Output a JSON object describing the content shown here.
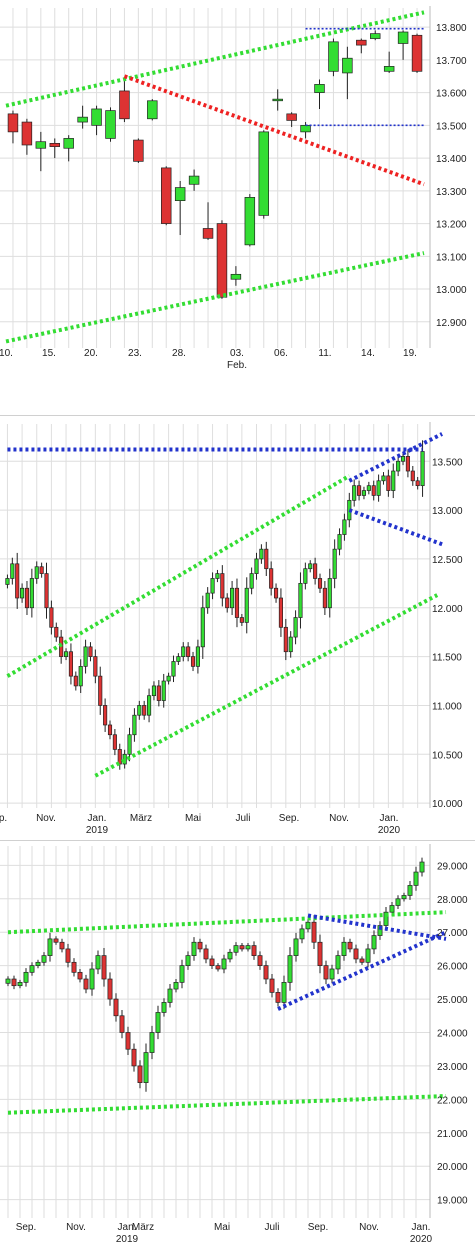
{
  "chart_data": [
    {
      "type": "candlestick",
      "title": "",
      "xlabel": "",
      "ylabel": "",
      "ylim": [
        12.82,
        13.84
      ],
      "yticks": [
        "13.800",
        "13.700",
        "13.600",
        "13.500",
        "13.400",
        "13.300",
        "13.200",
        "13.100",
        "13.000",
        "12.900"
      ],
      "ytick_values": [
        13800,
        13700,
        13600,
        13500,
        13400,
        13300,
        13200,
        13100,
        13000,
        12900
      ],
      "xticks": [
        "10.",
        "15.",
        "20.",
        "23.",
        "28.",
        "03.",
        "06.",
        "11.",
        "14.",
        "19."
      ],
      "xtick_sub": [
        "Feb."
      ],
      "grid": true,
      "candles": [
        {
          "x": 0,
          "open": 13535,
          "close": 13480,
          "high": 13545,
          "low": 13445
        },
        {
          "x": 1,
          "open": 13510,
          "close": 13440,
          "high": 13520,
          "low": 13410
        },
        {
          "x": 2,
          "open": 13430,
          "close": 13450,
          "high": 13480,
          "low": 13360
        },
        {
          "x": 3,
          "open": 13445,
          "close": 13435,
          "high": 13460,
          "low": 13400
        },
        {
          "x": 4,
          "open": 13430,
          "close": 13460,
          "high": 13470,
          "low": 13390
        },
        {
          "x": 5,
          "open": 13510,
          "close": 13525,
          "high": 13560,
          "low": 13490
        },
        {
          "x": 6,
          "open": 13500,
          "close": 13550,
          "high": 13560,
          "low": 13470
        },
        {
          "x": 7,
          "open": 13460,
          "close": 13545,
          "high": 13555,
          "low": 13450
        },
        {
          "x": 8,
          "open": 13605,
          "close": 13520,
          "high": 13640,
          "low": 13510
        },
        {
          "x": 9,
          "open": 13455,
          "close": 13390,
          "high": 13460,
          "low": 13385
        },
        {
          "x": 10,
          "open": 13520,
          "close": 13575,
          "high": 13580,
          "low": 13515
        },
        {
          "x": 11,
          "open": 13370,
          "close": 13200,
          "high": 13375,
          "low": 13195
        },
        {
          "x": 12,
          "open": 13270,
          "close": 13310,
          "high": 13330,
          "low": 13165
        },
        {
          "x": 13,
          "open": 13320,
          "close": 13345,
          "high": 13365,
          "low": 13300
        },
        {
          "x": 14,
          "open": 13185,
          "close": 13155,
          "high": 13265,
          "low": 13150
        },
        {
          "x": 15,
          "open": 13200,
          "close": 12975,
          "high": 13210,
          "low": 12970
        },
        {
          "x": 16,
          "open": 13030,
          "close": 13045,
          "high": 13070,
          "low": 13010
        },
        {
          "x": 17,
          "open": 13135,
          "close": 13280,
          "high": 13290,
          "low": 13130
        },
        {
          "x": 18,
          "open": 13225,
          "close": 13480,
          "high": 13485,
          "low": 13215
        },
        {
          "x": 19,
          "open": 13575,
          "close": 13580,
          "high": 13610,
          "low": 13545
        },
        {
          "x": 20,
          "open": 13535,
          "close": 13515,
          "high": 13540,
          "low": 13495
        },
        {
          "x": 21,
          "open": 13480,
          "close": 13500,
          "high": 13510,
          "low": 13460
        },
        {
          "x": 22,
          "open": 13600,
          "close": 13625,
          "high": 13640,
          "low": 13550
        },
        {
          "x": 23,
          "open": 13665,
          "close": 13755,
          "high": 13765,
          "low": 13650
        },
        {
          "x": 24,
          "open": 13660,
          "close": 13705,
          "high": 13740,
          "low": 13580
        },
        {
          "x": 25,
          "open": 13760,
          "close": 13745,
          "high": 13765,
          "low": 13720
        },
        {
          "x": 26,
          "open": 13765,
          "close": 13780,
          "high": 13790,
          "low": 13760
        },
        {
          "x": 27,
          "open": 13665,
          "close": 13680,
          "high": 13725,
          "low": 13660
        },
        {
          "x": 28,
          "open": 13750,
          "close": 13785,
          "high": 13790,
          "low": 13700
        },
        {
          "x": 29,
          "open": 13775,
          "close": 13665,
          "high": 13780,
          "low": 13660
        }
      ],
      "trendlines": [
        {
          "color": "#33dd33",
          "style": "dotted",
          "points": [
            [
              -0.5,
              13560
            ],
            [
              29.5,
              13845
            ]
          ]
        },
        {
          "color": "#33dd33",
          "style": "dotted",
          "points": [
            [
              -0.5,
              12840
            ],
            [
              29.5,
              13110
            ]
          ]
        },
        {
          "color": "#ee2222",
          "style": "dotted",
          "points": [
            [
              8,
              13650
            ],
            [
              29.5,
              13320
            ]
          ]
        },
        {
          "color": "#2233cc",
          "style": "dotted_thin",
          "points": [
            [
              21,
              13795
            ],
            [
              29.5,
              13795
            ]
          ]
        },
        {
          "color": "#2233cc",
          "style": "dotted_thin",
          "points": [
            [
              21,
              13500
            ],
            [
              29.5,
              13500
            ]
          ]
        }
      ]
    },
    {
      "type": "candlestick",
      "title": "",
      "xlabel": "",
      "ylabel": "",
      "ylim": [
        9.95,
        13.82
      ],
      "yticks": [
        "13.500",
        "13.000",
        "12.500",
        "12.000",
        "11.500",
        "11.000",
        "10.500",
        "10.000"
      ],
      "ytick_values": [
        13500,
        13000,
        12500,
        12000,
        11500,
        11000,
        10500,
        10000
      ],
      "xticks": [
        "p.",
        "Nov.",
        "Jan.",
        "März",
        "Mai",
        "Juli",
        "Sep.",
        "Nov.",
        "Jan."
      ],
      "xtick_sub": [
        "2019",
        "2020"
      ],
      "grid": true,
      "candles_close": [
        12300,
        12450,
        12100,
        12200,
        12000,
        12300,
        12420,
        12350,
        12000,
        11800,
        11700,
        11500,
        11550,
        11300,
        11200,
        11400,
        11600,
        11500,
        11300,
        11000,
        10800,
        10700,
        10550,
        10400,
        10500,
        10700,
        10900,
        11000,
        10900,
        11100,
        11200,
        11050,
        11250,
        11300,
        11450,
        11500,
        11600,
        11500,
        11400,
        11600,
        12000,
        12150,
        12300,
        12350,
        12100,
        12000,
        12200,
        11900,
        11850,
        12200,
        12350,
        12500,
        12600,
        12400,
        12200,
        12100,
        11800,
        11550,
        11700,
        11900,
        12250,
        12400,
        12450,
        12300,
        12200,
        12000,
        12300,
        12600,
        12750,
        12900,
        13100,
        13250,
        13150,
        13200,
        13250,
        13150,
        13300,
        13350,
        13200,
        13400,
        13500,
        13550,
        13400,
        13300,
        13250,
        13600
      ],
      "trendlines": [
        {
          "color": "#2233cc",
          "style": "dotted",
          "points": [
            [
              0,
              13620
            ],
            [
              85,
              13620
            ]
          ]
        },
        {
          "color": "#2233cc",
          "style": "dotted",
          "points": [
            [
              70,
              13300
            ],
            [
              89,
              13780
            ]
          ]
        },
        {
          "color": "#2233cc",
          "style": "dotted",
          "points": [
            [
              70,
              13000
            ],
            [
              89,
              12650
            ]
          ]
        },
        {
          "color": "#33dd33",
          "style": "dotted",
          "points": [
            [
              0,
              11300
            ],
            [
              70,
              13350
            ]
          ]
        },
        {
          "color": "#33dd33",
          "style": "dotted",
          "points": [
            [
              18,
              10280
            ],
            [
              88,
              12130
            ]
          ]
        }
      ]
    },
    {
      "type": "candlestick",
      "title": "",
      "xlabel": "",
      "ylabel": "",
      "ylim": [
        18.45,
        29.4
      ],
      "yticks": [
        "29.000",
        "28.000",
        "27.000",
        "26.000",
        "25.000",
        "24.000",
        "23.000",
        "22.000",
        "21.000",
        "20.000",
        "19.000"
      ],
      "ytick_values": [
        29000,
        28000,
        27000,
        26000,
        25000,
        24000,
        23000,
        22000,
        21000,
        20000,
        19000
      ],
      "xticks": [
        "Sep.",
        "Nov.",
        "Jan.",
        "März",
        "Mai",
        "Juli",
        "Sep.",
        "Nov.",
        "Jan."
      ],
      "xtick_sub": [
        "2019",
        "2020"
      ],
      "grid": true,
      "candles_close": [
        25600,
        25400,
        25500,
        25800,
        26000,
        26100,
        26300,
        26800,
        26700,
        26500,
        26100,
        25800,
        25600,
        25300,
        25900,
        26300,
        25600,
        25000,
        24500,
        24000,
        23500,
        23000,
        22500,
        23400,
        24000,
        24600,
        24900,
        25300,
        25500,
        26000,
        26300,
        26700,
        26500,
        26200,
        26000,
        25900,
        26200,
        26400,
        26600,
        26500,
        26600,
        26300,
        26000,
        25600,
        25200,
        24900,
        25500,
        26300,
        26800,
        27100,
        27300,
        26700,
        26000,
        25600,
        25900,
        26300,
        26700,
        26500,
        26200,
        26100,
        26500,
        26900,
        27200,
        27600,
        27800,
        28000,
        28100,
        28400,
        28800,
        29100
      ],
      "trendlines": [
        {
          "color": "#33dd33",
          "style": "dotted",
          "points": [
            [
              0,
              27000
            ],
            [
              73,
              27600
            ]
          ]
        },
        {
          "color": "#33dd33",
          "style": "dotted",
          "points": [
            [
              0,
              21600
            ],
            [
              73,
              22100
            ]
          ]
        },
        {
          "color": "#2233cc",
          "style": "dotted",
          "points": [
            [
              45,
              24700
            ],
            [
              73,
              27000
            ]
          ]
        },
        {
          "color": "#2233cc",
          "style": "dotted",
          "points": [
            [
              50,
              27500
            ],
            [
              73,
              26800
            ]
          ]
        }
      ]
    }
  ],
  "colors": {
    "up": "#33dd33",
    "down": "#dd3333",
    "wick": "#222222",
    "grid": "#dedede"
  }
}
